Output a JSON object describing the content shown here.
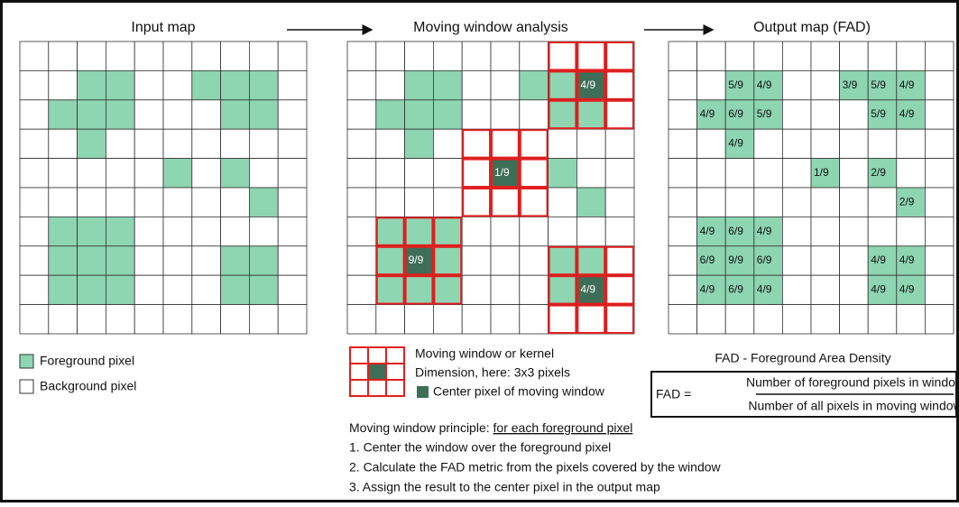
{
  "titles": {
    "input": "Input map",
    "moving": "Moving window analysis",
    "output": "Output map (FAD)"
  },
  "output_map": [
    [
      null,
      null,
      null,
      null,
      null,
      null,
      null,
      null,
      null,
      null
    ],
    [
      null,
      null,
      "5/9",
      "4/9",
      null,
      null,
      "3/9",
      "5/9",
      "4/9",
      null
    ],
    [
      null,
      "4/9",
      "6/9",
      "5/9",
      null,
      null,
      null,
      "5/9",
      "4/9",
      null
    ],
    [
      null,
      null,
      "4/9",
      null,
      null,
      null,
      null,
      null,
      null,
      null
    ],
    [
      null,
      null,
      null,
      null,
      null,
      "1/9",
      null,
      "2/9",
      null,
      null
    ],
    [
      null,
      null,
      null,
      null,
      null,
      null,
      null,
      null,
      "2/9",
      null
    ],
    [
      null,
      "4/9",
      "6/9",
      "4/9",
      null,
      null,
      null,
      null,
      null,
      null
    ],
    [
      null,
      "6/9",
      "9/9",
      "6/9",
      null,
      null,
      null,
      "4/9",
      "4/9",
      null
    ],
    [
      null,
      "4/9",
      "6/9",
      "4/9",
      null,
      null,
      null,
      "4/9",
      "4/9",
      null
    ],
    [
      null,
      null,
      null,
      null,
      null,
      null,
      null,
      null,
      null,
      null
    ]
  ],
  "windows": [
    "4/9",
    "1/9",
    "9/9",
    "4/9"
  ],
  "legend": {
    "foreground": "Foreground pixel",
    "background": "Background pixel"
  },
  "kernel": {
    "line1": "Moving window or kernel",
    "line2": "Dimension, here: 3x3 pixels",
    "center": "Center pixel of moving window"
  },
  "fad": {
    "title": "FAD - Foreground Area Density",
    "lhs": "FAD =",
    "numerator": "Number of foreground pixels in window",
    "denominator": "Number of all pixels in moving window"
  },
  "principle": {
    "lead": "Moving window principle: ",
    "emphasis": "for each foreground pixel",
    "steps": [
      "1. Center the window over the foreground pixel",
      "2. Calculate the FAD metric from the pixels covered by the window",
      "3. Assign the result to the center pixel in the output map"
    ]
  }
}
